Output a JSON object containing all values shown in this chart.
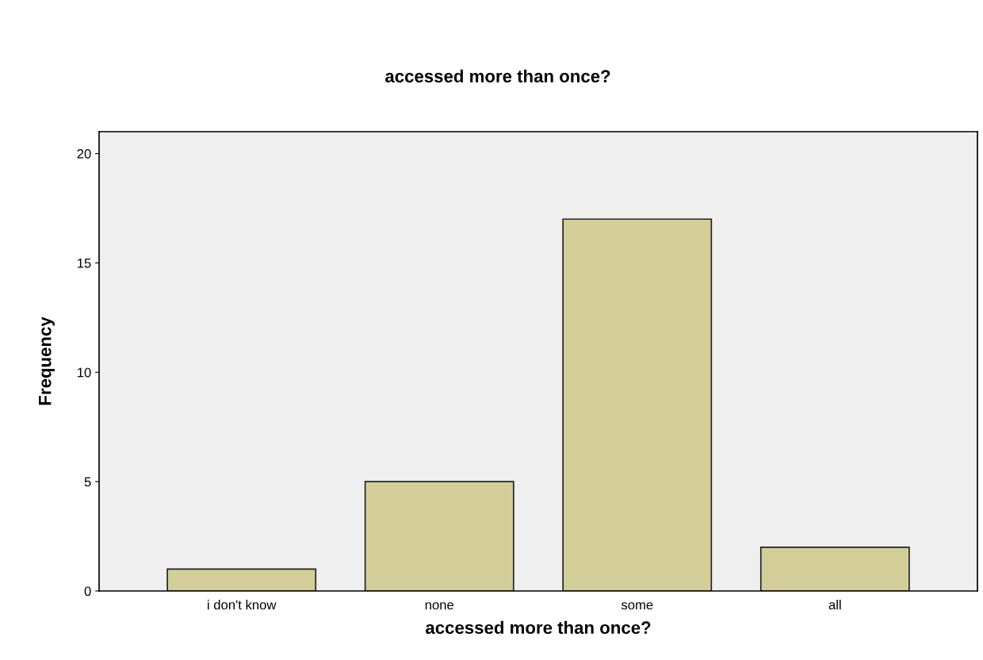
{
  "chart_data": {
    "type": "bar",
    "title": "accessed more than once?",
    "xlabel": "accessed more than once?",
    "ylabel": "Frequency",
    "categories": [
      "i don't know",
      "none",
      "some",
      "all"
    ],
    "values": [
      1,
      5,
      17,
      2
    ],
    "color": "#d3ce97",
    "ylim": [
      0,
      21
    ],
    "yticks": [
      0,
      5,
      10,
      15,
      20
    ],
    "grid": false,
    "legend": false
  }
}
